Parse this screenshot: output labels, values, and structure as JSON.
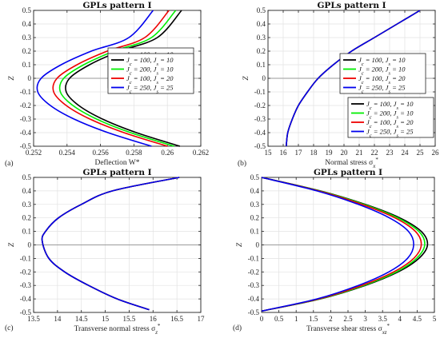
{
  "chart_data": [
    {
      "type": "line",
      "panel_label": "(a)",
      "title": "GPLs pattern I",
      "xlabel": "Deflection W*",
      "ylabel": "Z",
      "xlim": [
        0.252,
        0.262
      ],
      "ylim": [
        -0.5,
        0.5
      ],
      "xticks": [
        "0.252",
        "0.254",
        "0.256",
        "0.258",
        "0.26",
        "0.262"
      ],
      "yticks": [
        "-0.5",
        "-0.4",
        "-0.3",
        "-0.2",
        "-0.1",
        "0",
        "0.1",
        "0.2",
        "0.3",
        "0.4",
        "0.5"
      ],
      "grid": true,
      "legend_position": "right",
      "series": [
        {
          "name": "Jc = 100, Js = 10",
          "color": "#000000",
          "x": [
            0.26075,
            0.25815,
            0.25612,
            0.2547,
            0.25395,
            0.25415,
            0.25535,
            0.25715,
            0.2594,
            0.26085
          ],
          "y": [
            -0.5,
            -0.4,
            -0.3,
            -0.2,
            -0.1,
            0.0,
            0.1,
            0.2,
            0.3,
            0.5
          ]
        },
        {
          "name": "Jc = 200, Js = 10",
          "color": "#00ee00",
          "x": [
            0.2604,
            0.2578,
            0.25577,
            0.25435,
            0.2536,
            0.2538,
            0.255,
            0.2568,
            0.25905,
            0.2605
          ],
          "y": [
            -0.5,
            -0.4,
            -0.3,
            -0.2,
            -0.1,
            0.0,
            0.1,
            0.2,
            0.3,
            0.5
          ]
        },
        {
          "name": "Jc = 100, Js = 20",
          "color": "#ee0000",
          "x": [
            0.26,
            0.2574,
            0.25537,
            0.25395,
            0.2532,
            0.2534,
            0.2546,
            0.2564,
            0.25865,
            0.2601
          ],
          "y": [
            -0.5,
            -0.4,
            -0.3,
            -0.2,
            -0.1,
            0.0,
            0.1,
            0.2,
            0.3,
            0.5
          ]
        },
        {
          "name": "Jc = 250, Js = 25",
          "color": "#0000ee",
          "x": [
            0.25905,
            0.25645,
            0.25442,
            0.253,
            0.25225,
            0.25245,
            0.25365,
            0.25545,
            0.2577,
            0.25915
          ],
          "y": [
            -0.5,
            -0.4,
            -0.3,
            -0.2,
            -0.1,
            0.0,
            0.1,
            0.2,
            0.3,
            0.5
          ]
        }
      ]
    },
    {
      "type": "line",
      "panel_label": "(b)",
      "title": "GPLs pattern I",
      "xlabel": "Normal stress σx*",
      "ylabel": "Z",
      "xlim": [
        15,
        26
      ],
      "ylim": [
        -0.5,
        0.5
      ],
      "xticks": [
        "15",
        "16",
        "17",
        "18",
        "19",
        "20",
        "21",
        "22",
        "23",
        "24",
        "25",
        "26"
      ],
      "yticks": [
        "-0.5",
        "-0.4",
        "-0.3",
        "-0.2",
        "-0.1",
        "0",
        "0.1",
        "0.2",
        "0.3",
        "0.4",
        "0.5"
      ],
      "grid": true,
      "legend_position": "bottom-right",
      "series": [
        {
          "name": "Jc = 100, Js = 10",
          "color": "#000000",
          "x": [
            16.2,
            16.3,
            16.6,
            17.0,
            17.6,
            18.3,
            19.3,
            20.5,
            22.0,
            23.5,
            25.0
          ],
          "y": [
            -0.5,
            -0.4,
            -0.3,
            -0.2,
            -0.1,
            0.0,
            0.1,
            0.2,
            0.3,
            0.4,
            0.5
          ]
        },
        {
          "name": "Jc = 200, Js = 10",
          "color": "#00ee00",
          "x": [
            16.2,
            16.3,
            16.6,
            17.0,
            17.6,
            18.3,
            19.3,
            20.5,
            22.0,
            23.5,
            25.0
          ],
          "y": [
            -0.5,
            -0.4,
            -0.3,
            -0.2,
            -0.1,
            0.0,
            0.1,
            0.2,
            0.3,
            0.4,
            0.5
          ]
        },
        {
          "name": "Jc = 100, Js = 20",
          "color": "#ee0000",
          "x": [
            16.2,
            16.3,
            16.6,
            17.0,
            17.6,
            18.3,
            19.3,
            20.5,
            22.0,
            23.5,
            25.0
          ],
          "y": [
            -0.5,
            -0.4,
            -0.3,
            -0.2,
            -0.1,
            0.0,
            0.1,
            0.2,
            0.3,
            0.4,
            0.5
          ]
        },
        {
          "name": "Jc = 250, Js = 25",
          "color": "#0000ee",
          "x": [
            16.2,
            16.3,
            16.6,
            17.0,
            17.6,
            18.3,
            19.3,
            20.5,
            22.0,
            23.5,
            25.0
          ],
          "y": [
            -0.5,
            -0.4,
            -0.3,
            -0.2,
            -0.1,
            0.0,
            0.1,
            0.2,
            0.3,
            0.4,
            0.5
          ]
        }
      ]
    },
    {
      "type": "line",
      "panel_label": "(c)",
      "title": "GPLs pattern I",
      "xlabel": "Transverse normal stress σz*",
      "ylabel": "Z",
      "xlim": [
        13.5,
        17
      ],
      "ylim": [
        -0.5,
        0.5
      ],
      "xticks": [
        "13.5",
        "14",
        "14.5",
        "15",
        "15.5",
        "16",
        "16.5",
        "17"
      ],
      "yticks": [
        "-0.5",
        "-0.4",
        "-0.3",
        "-0.2",
        "-0.1",
        "0",
        "0.1",
        "0.2",
        "0.3",
        "0.4",
        "0.5"
      ],
      "grid": true,
      "legend_position": "right",
      "series": [
        {
          "name": "Jc = 100, Js = 10",
          "color": "#000000",
          "x": [
            15.92,
            15.25,
            14.65,
            14.15,
            13.82,
            13.68,
            13.75,
            14.02,
            14.5,
            15.15,
            16.55
          ],
          "y": [
            -0.48,
            -0.4,
            -0.3,
            -0.2,
            -0.1,
            0.03,
            0.1,
            0.2,
            0.3,
            0.4,
            0.5
          ]
        },
        {
          "name": "Jc = 200, Js = 10",
          "color": "#00ee00",
          "x": [
            15.92,
            15.25,
            14.65,
            14.15,
            13.82,
            13.68,
            13.75,
            14.02,
            14.5,
            15.15,
            16.55
          ],
          "y": [
            -0.48,
            -0.4,
            -0.3,
            -0.2,
            -0.1,
            0.03,
            0.1,
            0.2,
            0.3,
            0.4,
            0.5
          ]
        },
        {
          "name": "Jc = 100, Js = 20",
          "color": "#ee0000",
          "x": [
            15.92,
            15.25,
            14.65,
            14.15,
            13.82,
            13.68,
            13.75,
            14.02,
            14.5,
            15.15,
            16.55
          ],
          "y": [
            -0.48,
            -0.4,
            -0.3,
            -0.2,
            -0.1,
            0.03,
            0.1,
            0.2,
            0.3,
            0.4,
            0.5
          ]
        },
        {
          "name": "Jc = 250, Js = 25",
          "color": "#0000ee",
          "x": [
            15.92,
            15.25,
            14.65,
            14.15,
            13.82,
            13.68,
            13.75,
            14.02,
            14.5,
            15.15,
            16.55
          ],
          "y": [
            -0.48,
            -0.4,
            -0.3,
            -0.2,
            -0.1,
            0.03,
            0.1,
            0.2,
            0.3,
            0.4,
            0.5
          ]
        }
      ]
    },
    {
      "type": "line",
      "panel_label": "(d)",
      "title": "GPLs pattern I",
      "xlabel": "Transverse shear stress σxz*",
      "ylabel": "Z",
      "xlim": [
        0,
        5
      ],
      "ylim": [
        -0.5,
        0.5
      ],
      "xticks": [
        "0",
        "0.5",
        "1",
        "1.5",
        "2",
        "2.5",
        "3",
        "3.5",
        "4",
        "4.5",
        "5"
      ],
      "yticks": [
        "-0.5",
        "-0.4",
        "-0.3",
        "-0.2",
        "-0.1",
        "0",
        "0.1",
        "0.2",
        "0.3",
        "0.4",
        "0.5"
      ],
      "grid": true,
      "legend_position": "right",
      "series": [
        {
          "name": "Jc = 100, Js = 10",
          "color": "#000000",
          "x": [
            0.0,
            1.7,
            3.0,
            3.95,
            4.55,
            4.8,
            4.62,
            4.0,
            3.0,
            1.7,
            0.0
          ],
          "y": [
            -0.49,
            -0.4,
            -0.3,
            -0.2,
            -0.1,
            0.0,
            0.1,
            0.2,
            0.3,
            0.4,
            0.5
          ]
        },
        {
          "name": "Jc = 200, Js = 10",
          "color": "#00ee00",
          "x": [
            0.0,
            1.68,
            2.96,
            3.9,
            4.48,
            4.72,
            4.55,
            3.94,
            2.96,
            1.68,
            0.0
          ],
          "y": [
            -0.49,
            -0.4,
            -0.3,
            -0.2,
            -0.1,
            0.0,
            0.1,
            0.2,
            0.3,
            0.4,
            0.5
          ]
        },
        {
          "name": "Jc = 100, Js = 20",
          "color": "#ee0000",
          "x": [
            0.0,
            1.65,
            2.9,
            3.82,
            4.4,
            4.62,
            4.45,
            3.86,
            2.9,
            1.65,
            0.0
          ],
          "y": [
            -0.49,
            -0.4,
            -0.3,
            -0.2,
            -0.1,
            0.0,
            0.1,
            0.2,
            0.3,
            0.4,
            0.5
          ]
        },
        {
          "name": "Jc = 250, Js = 25",
          "color": "#0000ee",
          "x": [
            0.0,
            1.6,
            2.8,
            3.68,
            4.22,
            4.4,
            4.25,
            3.7,
            2.8,
            1.6,
            0.0
          ],
          "y": [
            -0.49,
            -0.4,
            -0.3,
            -0.2,
            -0.1,
            0.0,
            0.1,
            0.2,
            0.3,
            0.4,
            0.5
          ]
        }
      ]
    }
  ]
}
